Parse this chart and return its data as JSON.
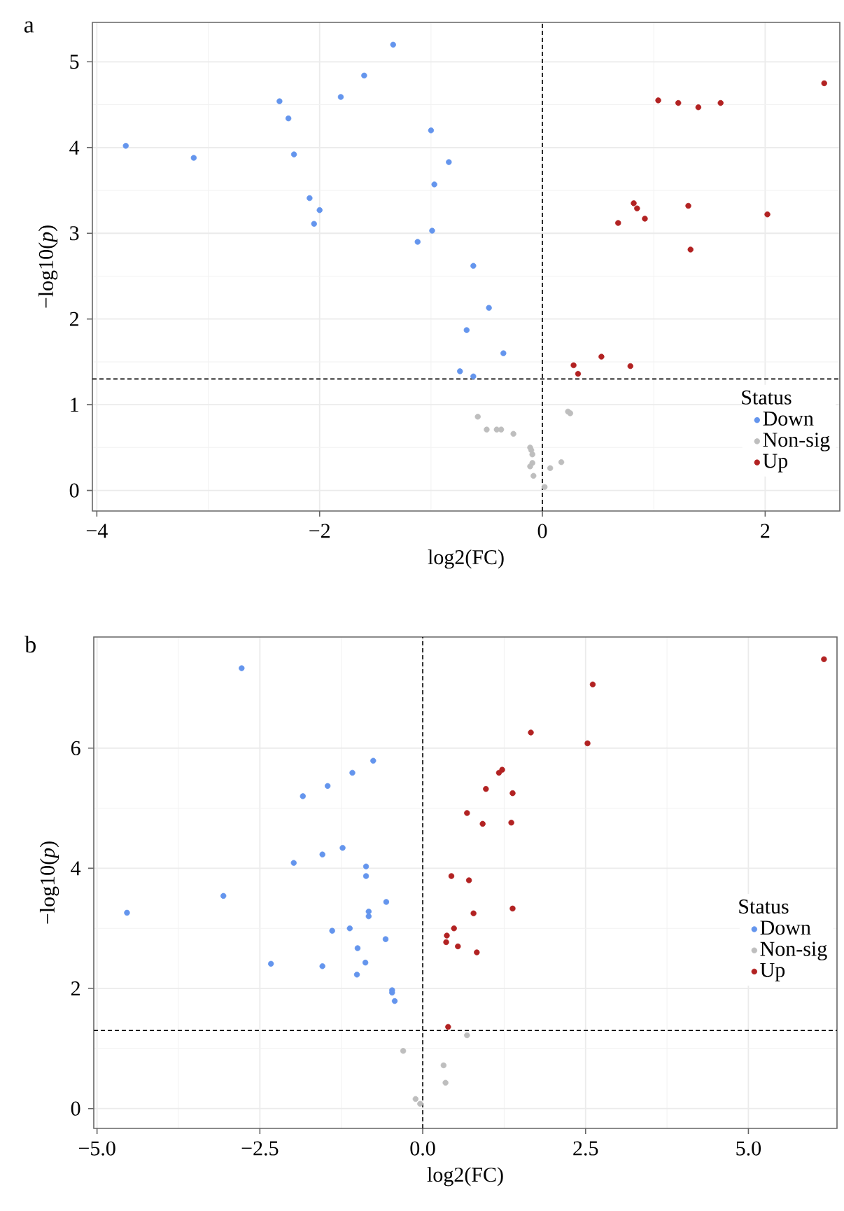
{
  "chart_data": [
    {
      "type": "scatter",
      "title": "a",
      "xlabel": "log2(FC)",
      "ylabel": "−log10(*p*)",
      "legend_title": "Status",
      "legend": "bottom right",
      "grid": true,
      "xlim": [
        -4.04,
        2.67
      ],
      "ylim": [
        -0.24,
        5.46
      ],
      "xticks": [
        {
          "value": -4,
          "label": "−4"
        },
        {
          "value": -2,
          "label": "−2"
        },
        0,
        2
      ],
      "yticks": [
        0,
        1,
        2,
        3,
        4,
        5
      ],
      "ref_lines": [
        {
          "axis": "x",
          "value": 0,
          "line_style": "dashed",
          "color": "#000000"
        },
        {
          "axis": "y",
          "value": 1.3,
          "line_style": "dashed",
          "color": "#000000"
        }
      ],
      "series": [
        {
          "name": "Down",
          "color": "#6495ed",
          "x": [
            -3.74,
            -3.13,
            -2.36,
            -2.28,
            -2.23,
            -2.09,
            -2.0,
            -2.05,
            -1.81,
            -1.6,
            -1.34,
            -1.12,
            -1.0,
            -0.99,
            -0.97,
            -0.84,
            -0.62,
            -0.48,
            -0.68,
            -0.35,
            -0.74,
            -0.62
          ],
          "values": [
            4.02,
            3.88,
            4.54,
            4.34,
            3.92,
            3.41,
            3.27,
            3.11,
            4.59,
            4.84,
            5.2,
            2.9,
            4.2,
            3.03,
            3.57,
            3.83,
            2.62,
            2.13,
            1.87,
            1.6,
            1.39,
            1.33
          ]
        },
        {
          "name": "Non-sig",
          "color": "#bebebe",
          "x": [
            -0.58,
            -0.5,
            -0.41,
            -0.37,
            -0.26,
            0.23,
            0.25,
            -0.11,
            -0.1,
            -0.09,
            -0.09,
            -0.11,
            -0.08,
            0.07,
            0.17,
            0.02
          ],
          "values": [
            0.86,
            0.71,
            0.71,
            0.71,
            0.66,
            0.92,
            0.9,
            0.5,
            0.47,
            0.42,
            0.32,
            0.28,
            0.17,
            0.26,
            0.33,
            0.04
          ]
        },
        {
          "name": "Up",
          "color": "#b22222",
          "x": [
            1.04,
            1.22,
            1.4,
            1.6,
            2.53,
            0.82,
            0.85,
            0.92,
            0.68,
            1.31,
            2.02,
            1.33,
            0.53,
            0.28,
            0.32,
            0.79
          ],
          "values": [
            4.55,
            4.52,
            4.47,
            4.52,
            4.75,
            3.35,
            3.29,
            3.17,
            3.12,
            3.32,
            3.22,
            2.81,
            1.56,
            1.46,
            1.36,
            1.45
          ]
        }
      ]
    },
    {
      "type": "scatter",
      "title": "b",
      "xlabel": "log2(FC)",
      "ylabel": "−log10(*p*)",
      "legend_title": "Status",
      "legend": "right",
      "grid": true,
      "xlim": [
        -5.05,
        6.36
      ],
      "ylim": [
        -0.33,
        7.85
      ],
      "xticks": [
        {
          "value": -5,
          "label": "−5.0"
        },
        {
          "value": -2.5,
          "label": "−2.5"
        },
        {
          "value": 0,
          "label": "0.0"
        },
        {
          "value": 2.5,
          "label": "2.5"
        },
        {
          "value": 5,
          "label": "5.0"
        }
      ],
      "yticks": [
        0,
        2,
        4,
        6
      ],
      "ref_lines": [
        {
          "axis": "x",
          "value": 0,
          "line_style": "dashed",
          "color": "#000000"
        },
        {
          "axis": "y",
          "value": 1.3,
          "line_style": "dashed",
          "color": "#000000"
        }
      ],
      "series": [
        {
          "name": "Down",
          "color": "#6495ed",
          "x": [
            -4.54,
            -2.78,
            -3.06,
            -2.33,
            -1.98,
            -1.84,
            -1.54,
            -1.46,
            -1.54,
            -1.39,
            -1.23,
            -1.12,
            -1.08,
            -1.0,
            -1.01,
            -0.88,
            -0.87,
            -0.87,
            -0.83,
            -0.83,
            -0.76,
            -0.57,
            -0.56,
            -0.47,
            -0.47,
            -0.43
          ],
          "values": [
            3.26,
            7.33,
            3.54,
            2.41,
            4.09,
            5.2,
            4.23,
            5.37,
            2.37,
            2.96,
            4.34,
            3.0,
            5.59,
            2.67,
            2.23,
            2.43,
            4.03,
            3.87,
            3.28,
            3.2,
            5.79,
            2.82,
            3.44,
            1.97,
            1.93,
            1.79
          ]
        },
        {
          "name": "Non-sig",
          "color": "#bebebe",
          "x": [
            -0.3,
            -0.11,
            -0.04,
            0.68,
            0.32,
            0.35
          ],
          "values": [
            0.96,
            0.16,
            0.08,
            1.22,
            0.72,
            0.43
          ]
        },
        {
          "name": "Up",
          "color": "#b22222",
          "x": [
            6.16,
            2.61,
            1.66,
            2.53,
            1.17,
            1.22,
            0.97,
            1.38,
            0.68,
            0.92,
            1.36,
            0.44,
            0.71,
            0.78,
            1.38,
            0.48,
            0.37,
            0.36,
            0.54,
            0.83,
            0.39
          ],
          "values": [
            7.48,
            7.06,
            6.26,
            6.08,
            5.59,
            5.64,
            5.32,
            5.25,
            4.92,
            4.74,
            4.76,
            3.87,
            3.8,
            3.25,
            3.33,
            3.0,
            2.88,
            2.77,
            2.7,
            2.6,
            1.36
          ]
        }
      ]
    }
  ]
}
